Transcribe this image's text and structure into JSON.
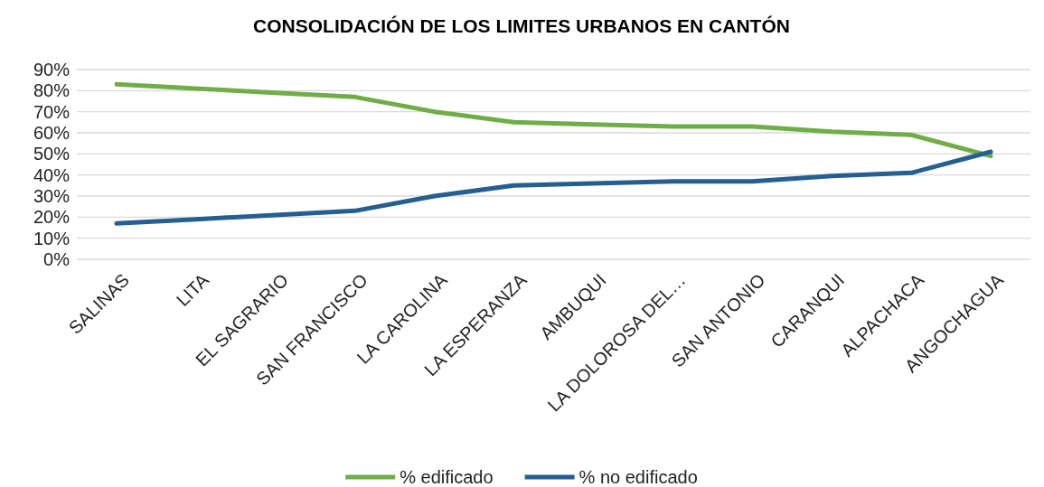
{
  "chart_data": {
    "type": "line",
    "title": "CONSOLIDACIÓN DE LOS LIMITES URBANOS EN CANTÓN",
    "categories": [
      "SALINAS",
      "LITA",
      "EL SAGRARIO",
      "SAN FRANCISCO",
      "LA CAROLINA",
      "LA ESPERANZA",
      "AMBUQUI",
      "LA DOLOROSA DEL…",
      "SAN ANTONIO",
      "CARANQUI",
      "ALPACHACA",
      "ANGOCHAGUA"
    ],
    "series": [
      {
        "name": "% edificado",
        "color": "#70ad47",
        "values": [
          83,
          81,
          79,
          77,
          70,
          65,
          64,
          63,
          63,
          60.5,
          59,
          49
        ]
      },
      {
        "name": "% no edificado",
        "color": "#255e91",
        "values": [
          17,
          19,
          21,
          23,
          30,
          35,
          36,
          37,
          37,
          39.5,
          41,
          51
        ]
      }
    ],
    "ylim": [
      0,
      90
    ],
    "yticks": [
      {
        "value": 0,
        "label": "0%"
      },
      {
        "value": 10,
        "label": "10%"
      },
      {
        "value": 20,
        "label": "20%"
      },
      {
        "value": 30,
        "label": "30%"
      },
      {
        "value": 40,
        "label": "40%"
      },
      {
        "value": 50,
        "label": "50%"
      },
      {
        "value": 60,
        "label": "60%"
      },
      {
        "value": 70,
        "label": "70%"
      },
      {
        "value": 80,
        "label": "80%"
      },
      {
        "value": 90,
        "label": "90%"
      }
    ],
    "grid": "y",
    "legend": "bottom",
    "marker": "none",
    "line_style": "solid"
  }
}
